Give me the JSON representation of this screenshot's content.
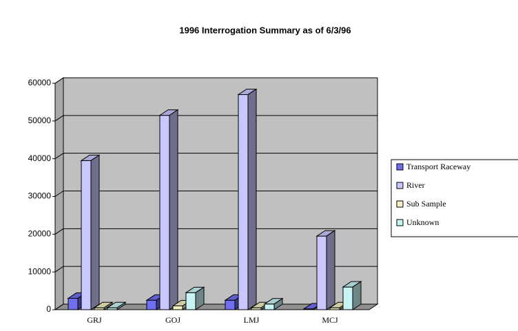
{
  "chart_data": {
    "type": "bar3d",
    "title": "1996 Interrogation Summary as of 6/3/96",
    "categories": [
      "GRJ",
      "GOJ",
      "LMJ",
      "MCJ"
    ],
    "series": [
      {
        "name": "Transport Raceway",
        "color": "#6f6ff0",
        "values": [
          3000,
          2500,
          2500,
          200
        ]
      },
      {
        "name": "River",
        "color": "#c8c8ff",
        "values": [
          39500,
          51500,
          57000,
          19500
        ]
      },
      {
        "name": "Sub Sample",
        "color": "#f4f0c0",
        "values": [
          500,
          1000,
          500,
          500
        ]
      },
      {
        "name": "Unknown",
        "color": "#c8f4f4",
        "values": [
          500,
          4500,
          1500,
          6000
        ]
      }
    ],
    "ylim": [
      0,
      60000
    ],
    "yticks": [
      0,
      10000,
      20000,
      30000,
      40000,
      50000,
      60000
    ],
    "grid": true,
    "legend": "right"
  }
}
